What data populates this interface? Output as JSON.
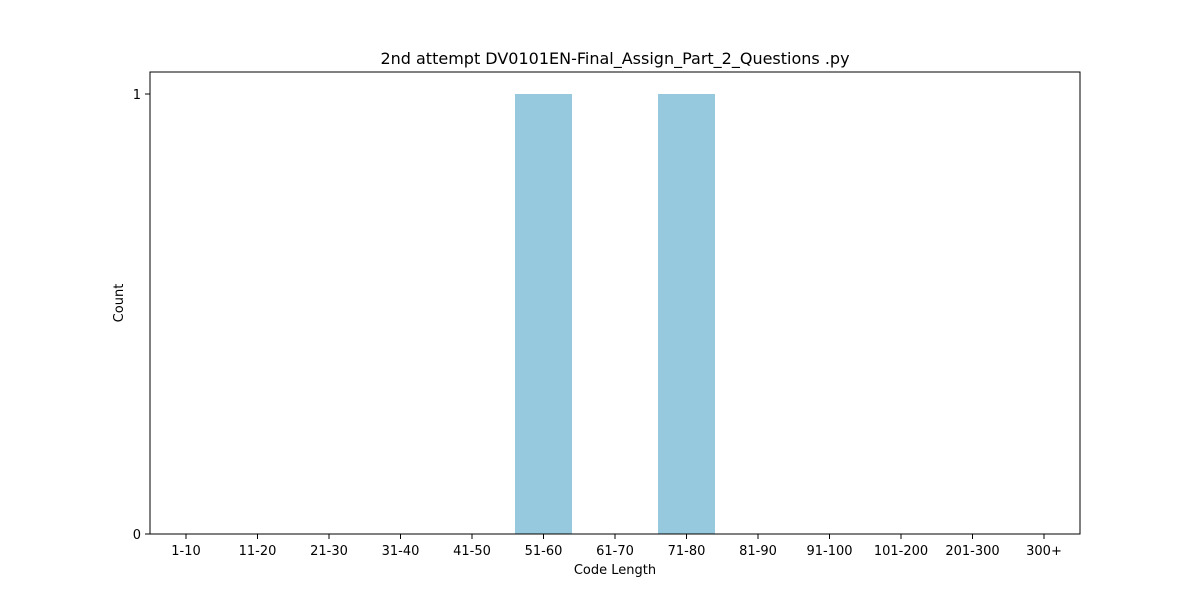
{
  "chart_data": {
    "type": "bar",
    "title": "2nd attempt DV0101EN-Final_Assign_Part_2_Questions .py",
    "xlabel": "Code Length",
    "ylabel": "Count",
    "categories": [
      "1-10",
      "11-20",
      "21-30",
      "31-40",
      "41-50",
      "51-60",
      "61-70",
      "71-80",
      "81-90",
      "91-100",
      "101-200",
      "201-300",
      "300+"
    ],
    "values": [
      0,
      0,
      0,
      0,
      0,
      1,
      0,
      1,
      0,
      0,
      0,
      0,
      0
    ],
    "ylim": [
      0,
      1.05
    ],
    "yticks": [
      0,
      1
    ],
    "ytick_labels": [
      "0",
      "1"
    ],
    "grid": false,
    "bar_color": "#96c9dd"
  }
}
